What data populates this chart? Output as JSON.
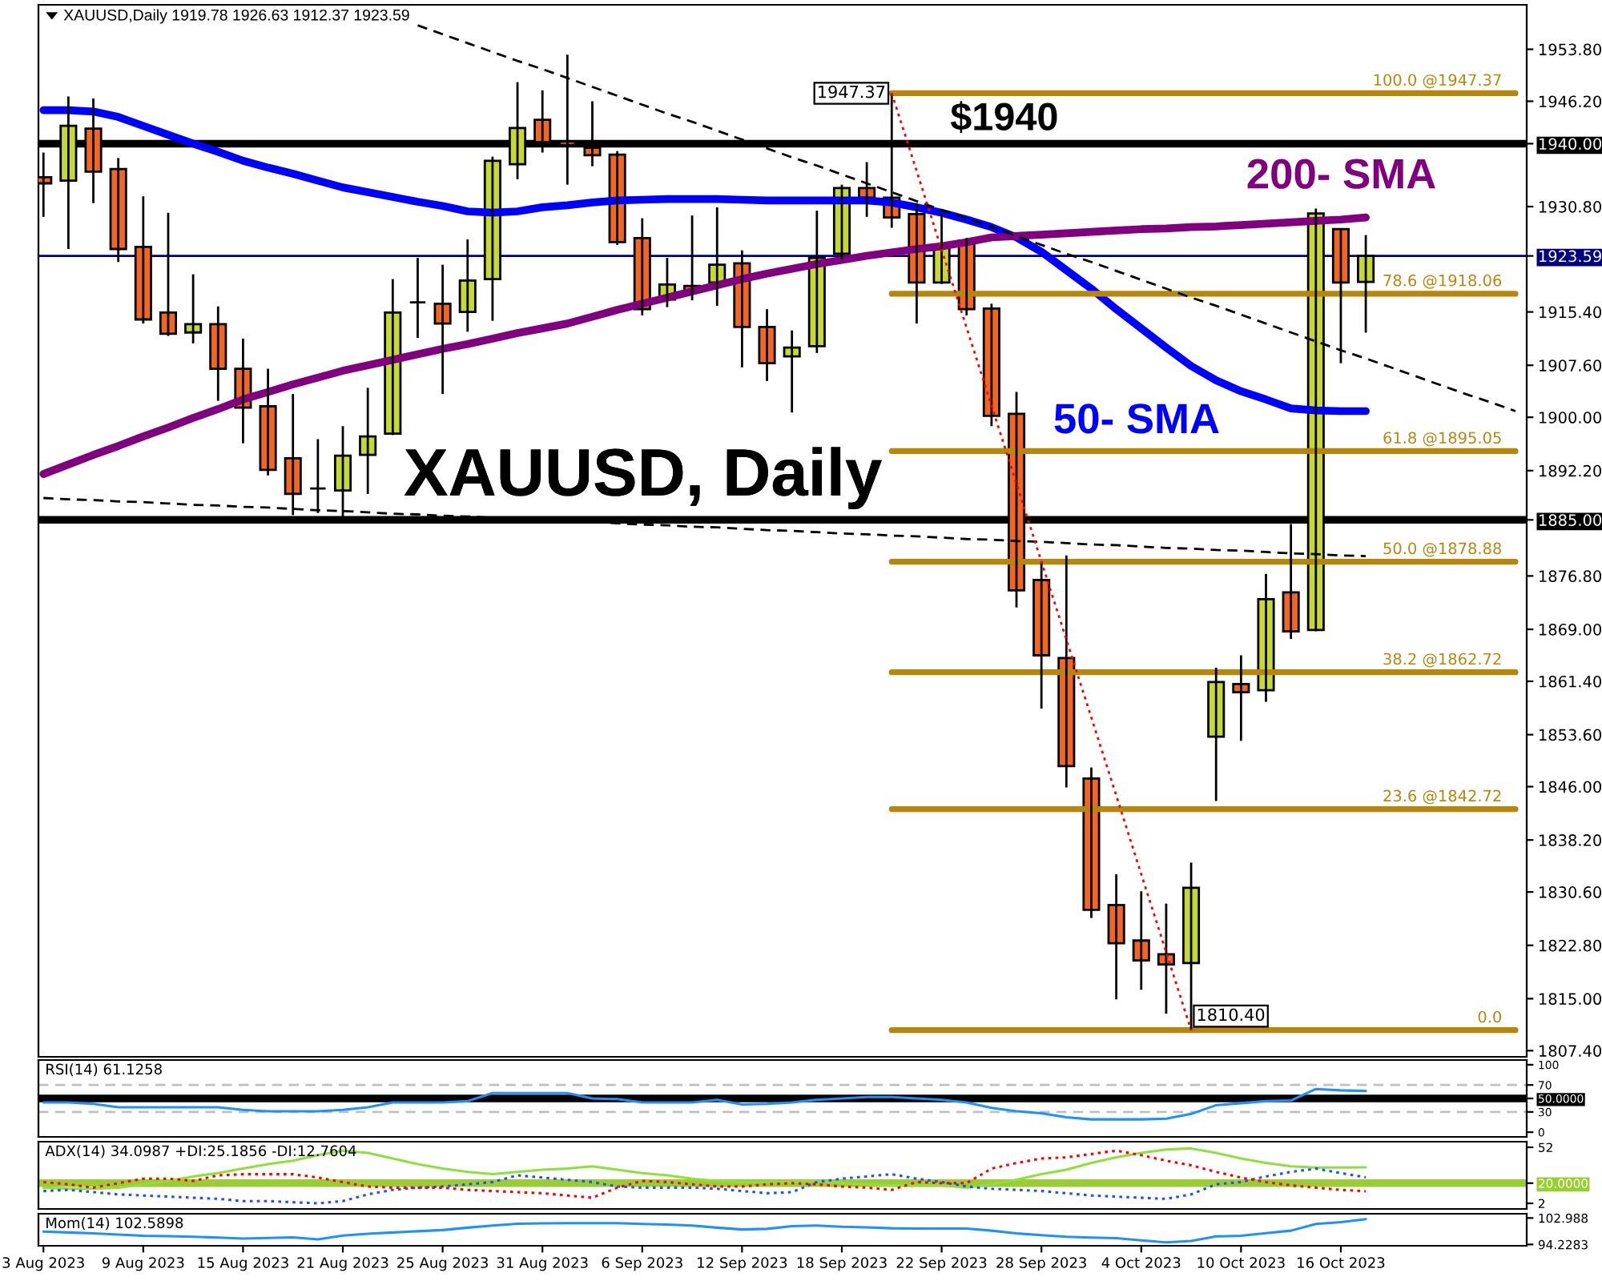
{
  "chart_data": [
    {
      "type": "candlestick",
      "title": "XAUUSD, Daily",
      "subtitle": "XAUUSD,Daily 1919.78 1926.63 1912.37 1923.59",
      "categories": [
        null,
        null,
        null,
        null,
        null,
        null,
        null,
        null,
        null,
        null,
        null,
        null,
        null,
        null,
        null,
        null,
        null,
        null,
        null,
        null,
        null,
        null,
        null,
        null,
        null,
        null,
        null,
        null,
        null,
        null,
        null,
        null,
        null,
        null,
        null,
        null,
        null,
        null,
        null,
        null,
        null,
        null,
        null,
        null,
        null,
        null,
        null,
        null,
        null,
        null,
        null,
        null,
        null,
        null,
        null,
        null,
        null,
        null,
        null,
        null
      ],
      "ohlc": [
        [
          1935.1,
          1938.7,
          1929.3,
          1934.2
        ],
        [
          1934.6,
          1946.9,
          1924.6,
          1942.6
        ],
        [
          1942.2,
          1946.6,
          1931.3,
          1935.9
        ],
        [
          1936.3,
          1937.9,
          1922.7,
          1924.6
        ],
        [
          1924.9,
          1932.3,
          1913.7,
          1914.3
        ],
        [
          1915.3,
          1929.9,
          1911.9,
          1912.2
        ],
        [
          1912.4,
          1920.9,
          1910.8,
          1913.6
        ],
        [
          1913.6,
          1916.2,
          1902.4,
          1907.1
        ],
        [
          1907.1,
          1911.5,
          1896.2,
          1901.4
        ],
        [
          1901.6,
          1907.1,
          1891.5,
          1892.3
        ],
        [
          1894.0,
          1903.4,
          1885.7,
          1888.8
        ],
        [
          1889.6,
          1896.8,
          1886.0,
          1889.6
        ],
        [
          1889.3,
          1898.7,
          1885.3,
          1894.4
        ],
        [
          1894.5,
          1904.3,
          1888.8,
          1897.2
        ],
        [
          1897.6,
          1920.2,
          1897.4,
          1915.3
        ],
        [
          1916.8,
          1923.3,
          1911.6,
          1916.8
        ],
        [
          1916.6,
          1922.3,
          1903.4,
          1913.7
        ],
        [
          1915.4,
          1926.0,
          1912.5,
          1920.0
        ],
        [
          1920.2,
          1938.1,
          1914.1,
          1937.5
        ],
        [
          1937.0,
          1949.0,
          1934.8,
          1942.3
        ],
        [
          1943.5,
          1947.8,
          1938.7,
          1940.2
        ],
        [
          1940.3,
          1953.0,
          1934.0,
          1939.8
        ],
        [
          1939.4,
          1946.2,
          1936.7,
          1938.3
        ],
        [
          1938.4,
          1938.9,
          1925.2,
          1925.6
        ],
        [
          1926.2,
          1929.1,
          1914.9,
          1915.8
        ],
        [
          1917.2,
          1923.3,
          1916.1,
          1919.4
        ],
        [
          1919.2,
          1929.5,
          1917.1,
          1918.6
        ],
        [
          1919.7,
          1930.7,
          1916.3,
          1922.3
        ],
        [
          1922.5,
          1924.4,
          1907.3,
          1913.2
        ],
        [
          1913.2,
          1915.8,
          1905.3,
          1907.9
        ],
        [
          1908.9,
          1912.7,
          1900.7,
          1910.2
        ],
        [
          1910.4,
          1930.2,
          1909.4,
          1923.3
        ],
        [
          1923.9,
          1934.0,
          1923.1,
          1933.5
        ],
        [
          1933.5,
          1937.3,
          1929.3,
          1932.1
        ],
        [
          1932.1,
          1947.37,
          1927.7,
          1929.2
        ],
        [
          1929.7,
          1931.3,
          1913.7,
          1919.7
        ],
        [
          1919.7,
          1929.8,
          1919.5,
          1925.2
        ],
        [
          1925.8,
          1926.2,
          1914.9,
          1915.8
        ],
        [
          1915.9,
          1916.6,
          1898.7,
          1900.2
        ],
        [
          1900.5,
          1903.7,
          1872.2,
          1874.7
        ],
        [
          1876.2,
          1878.9,
          1857.4,
          1865.2
        ],
        [
          1864.8,
          1879.8,
          1845.9,
          1849.0
        ],
        [
          1847.2,
          1848.8,
          1826.8,
          1828.0
        ],
        [
          1828.7,
          1833.2,
          1814.9,
          1823.1
        ],
        [
          1823.5,
          1830.7,
          1816.3,
          1820.6
        ],
        [
          1821.5,
          1828.9,
          1812.8,
          1820.0
        ],
        [
          1820.2,
          1834.9,
          1810.4,
          1831.2
        ],
        [
          1853.3,
          1863.4,
          1843.9,
          1861.3
        ],
        [
          1861.0,
          1865.2,
          1852.7,
          1859.8
        ],
        [
          1860.1,
          1877.1,
          1858.4,
          1873.4
        ],
        [
          1874.4,
          1884.4,
          1867.6,
          1868.7
        ],
        [
          1868.9,
          1930.5,
          1868.7,
          1929.8
        ],
        [
          1927.5,
          1927.5,
          1907.9,
          1919.7
        ],
        [
          1919.78,
          1926.63,
          1912.37,
          1923.59
        ],
        null,
        null,
        null,
        null,
        null,
        null
      ],
      "colors": [
        "#f26522",
        "#c5d833",
        "#f26522",
        "#f26522",
        "#f26522",
        "#f26522",
        "#c5d833",
        "#f26522",
        "#f26522",
        "#f26522",
        "#f26522",
        "#000000",
        "#c5d833",
        "#c5d833",
        "#c5d833",
        "#000000",
        "#f26522",
        "#c5d833",
        "#c5d833",
        "#c5d833",
        "#f26522",
        "#f26522",
        "#f26522",
        "#f26522",
        "#f26522",
        "#c5d833",
        "#f26522",
        "#c5d833",
        "#f26522",
        "#f26522",
        "#c5d833",
        "#c5d833",
        "#c5d833",
        "#f26522",
        "#f26522",
        "#f26522",
        "#c5d833",
        "#f26522",
        "#f26522",
        "#f26522",
        "#f26522",
        "#f26522",
        "#f26522",
        "#f26522",
        "#f26522",
        "#f26522",
        "#c5d833",
        "#c5d833",
        "#f26522",
        "#c5d833",
        "#f26522",
        "#c5d833",
        "#f26522",
        "#c5d833",
        null,
        null,
        null,
        null,
        null,
        null
      ],
      "series": [
        {
          "type": "line",
          "name": "50- SMA",
          "color": "#0000ff",
          "values": [
            1944.9,
            1944.9,
            1944.7,
            1943.9,
            1942.6,
            1941.3,
            1940.0,
            1938.8,
            1937.5,
            1936.5,
            1935.6,
            1934.6,
            1933.6,
            1932.9,
            1932.2,
            1931.5,
            1930.9,
            1930.1,
            1929.9,
            1930.1,
            1930.7,
            1931.0,
            1931.4,
            1931.7,
            1931.8,
            1931.9,
            1931.9,
            1931.9,
            1931.8,
            1931.7,
            1931.7,
            1931.7,
            1931.7,
            1931.7,
            1931.4,
            1930.7,
            1929.9,
            1928.9,
            1927.8,
            1926.3,
            1924.2,
            1921.5,
            1918.8,
            1915.8,
            1913.0,
            1910.2,
            1907.5,
            1905.4,
            1903.8,
            1902.6,
            1901.3,
            1901.0,
            1900.9,
            1900.9,
            null,
            null,
            null,
            null,
            null,
            null
          ]
        },
        {
          "type": "line",
          "name": "200- SMA",
          "color": "#800080",
          "values": [
            1891.7,
            1893.1,
            1894.5,
            1895.8,
            1897.2,
            1898.5,
            1899.9,
            1901.2,
            1902.6,
            1903.7,
            1904.8,
            1905.8,
            1906.8,
            1907.6,
            1908.4,
            1909.2,
            1910.0,
            1910.7,
            1911.5,
            1912.3,
            1913.0,
            1913.7,
            1914.7,
            1915.7,
            1916.6,
            1917.5,
            1918.4,
            1919.3,
            1920.2,
            1921.0,
            1921.7,
            1922.4,
            1923.0,
            1923.6,
            1924.1,
            1924.6,
            1925.0,
            1925.6,
            1926.3,
            1926.5,
            1926.7,
            1926.9,
            1927.1,
            1927.3,
            1927.5,
            1927.6,
            1927.8,
            1927.9,
            1928.1,
            1928.3,
            1928.5,
            1928.7,
            1928.9,
            1929.2,
            null,
            null,
            null,
            null,
            null,
            null
          ]
        },
        {
          "type": "line",
          "color": "#000000",
          "line_style": "dashed",
          "values": [
            null,
            null,
            null,
            null,
            null,
            null,
            null,
            null,
            null,
            null,
            null,
            null,
            null,
            null,
            null,
            1957.3,
            1956.0,
            1954.7,
            1953.4,
            1952.1,
            1950.9,
            1949.6,
            1948.3,
            1947.0,
            1945.7,
            1944.4,
            1943.2,
            1941.9,
            1940.6,
            1939.3,
            1938.0,
            1936.8,
            1935.5,
            1934.2,
            1932.9,
            1931.6,
            1930.3,
            1929.1,
            1927.8,
            1926.5,
            1925.2,
            1923.9,
            1922.7,
            1921.4,
            1920.1,
            1918.8,
            1917.5,
            1916.3,
            1915.0,
            1913.7,
            1912.4,
            1911.1,
            1909.8,
            1908.6,
            1907.3,
            1906.0,
            1904.7,
            1903.4,
            1902.2,
            1900.9
          ]
        },
        {
          "type": "line",
          "color": "#000000",
          "line_style": "dashed",
          "values": [
            1888.2,
            1888.0,
            1887.9,
            1887.7,
            1887.6,
            1887.4,
            1887.2,
            1887.1,
            1886.9,
            1886.8,
            1886.6,
            1886.4,
            1886.3,
            1886.1,
            1885.9,
            1885.8,
            1885.6,
            1885.5,
            1885.3,
            1885.1,
            1885.0,
            1884.8,
            1884.7,
            1884.5,
            1884.3,
            1884.2,
            1884.0,
            1883.9,
            1883.7,
            1883.5,
            1883.4,
            1883.2,
            1883.0,
            1882.9,
            1882.7,
            1882.6,
            1882.4,
            1882.2,
            1882.1,
            1881.9,
            1881.8,
            1881.6,
            1881.4,
            1881.3,
            1881.1,
            1880.9,
            1880.8,
            1880.6,
            1880.5,
            1880.3,
            1880.1,
            1880.0,
            1879.8,
            1879.7,
            null,
            null,
            null,
            null,
            null,
            null
          ]
        },
        {
          "type": "line",
          "color": "#ff0000",
          "line_style": "dotted",
          "values": [
            null,
            null,
            null,
            null,
            null,
            null,
            null,
            null,
            null,
            null,
            null,
            null,
            null,
            null,
            null,
            null,
            null,
            null,
            null,
            null,
            null,
            null,
            null,
            null,
            null,
            null,
            null,
            null,
            null,
            null,
            null,
            null,
            null,
            null,
            1947.37,
            1936.0,
            1924.5,
            1913.1,
            1901.7,
            1890.3,
            1878.9,
            1867.5,
            1856.1,
            1844.7,
            1833.2,
            1821.8,
            1810.4,
            null,
            null,
            null,
            null,
            null,
            null,
            null,
            null,
            null,
            null,
            null,
            null,
            null
          ]
        },
        {
          "type": "line",
          "name": "100.0 @1947.37",
          "color": "#b8860b",
          "values": [
            null,
            null,
            null,
            null,
            null,
            null,
            null,
            null,
            null,
            null,
            null,
            null,
            null,
            null,
            null,
            null,
            null,
            null,
            null,
            null,
            null,
            null,
            null,
            null,
            null,
            null,
            null,
            null,
            null,
            null,
            null,
            null,
            null,
            null,
            1947.37,
            1947.37,
            1947.37,
            1947.37,
            1947.37,
            1947.37,
            1947.37,
            1947.37,
            1947.37,
            1947.37,
            1947.37,
            1947.37,
            1947.37,
            1947.37,
            1947.37,
            1947.37,
            1947.37,
            1947.37,
            1947.37,
            1947.37,
            1947.37,
            1947.37,
            1947.37,
            1947.37,
            1947.37,
            1947.37
          ]
        },
        {
          "type": "line",
          "name": "78.6 @1918.06",
          "color": "#b8860b",
          "values": [
            null,
            null,
            null,
            null,
            null,
            null,
            null,
            null,
            null,
            null,
            null,
            null,
            null,
            null,
            null,
            null,
            null,
            null,
            null,
            null,
            null,
            null,
            null,
            null,
            null,
            null,
            null,
            null,
            null,
            null,
            null,
            null,
            null,
            null,
            1918.06,
            1918.06,
            1918.06,
            1918.06,
            1918.06,
            1918.06,
            1918.06,
            1918.06,
            1918.06,
            1918.06,
            1918.06,
            1918.06,
            1918.06,
            1918.06,
            1918.06,
            1918.06,
            1918.06,
            1918.06,
            1918.06,
            1918.06,
            1918.06,
            1918.06,
            1918.06,
            1918.06,
            1918.06,
            1918.06
          ]
        },
        {
          "type": "line",
          "name": "61.8 @1895.05",
          "color": "#b8860b",
          "values": [
            null,
            null,
            null,
            null,
            null,
            null,
            null,
            null,
            null,
            null,
            null,
            null,
            null,
            null,
            null,
            null,
            null,
            null,
            null,
            null,
            null,
            null,
            null,
            null,
            null,
            null,
            null,
            null,
            null,
            null,
            null,
            null,
            null,
            null,
            1895.05,
            1895.05,
            1895.05,
            1895.05,
            1895.05,
            1895.05,
            1895.05,
            1895.05,
            1895.05,
            1895.05,
            1895.05,
            1895.05,
            1895.05,
            1895.05,
            1895.05,
            1895.05,
            1895.05,
            1895.05,
            1895.05,
            1895.05,
            1895.05,
            1895.05,
            1895.05,
            1895.05,
            1895.05,
            1895.05
          ]
        },
        {
          "type": "line",
          "name": "50.0 @1878.88",
          "color": "#b8860b",
          "values": [
            null,
            null,
            null,
            null,
            null,
            null,
            null,
            null,
            null,
            null,
            null,
            null,
            null,
            null,
            null,
            null,
            null,
            null,
            null,
            null,
            null,
            null,
            null,
            null,
            null,
            null,
            null,
            null,
            null,
            null,
            null,
            null,
            null,
            null,
            1878.88,
            1878.88,
            1878.88,
            1878.88,
            1878.88,
            1878.88,
            1878.88,
            1878.88,
            1878.88,
            1878.88,
            1878.88,
            1878.88,
            1878.88,
            1878.88,
            1878.88,
            1878.88,
            1878.88,
            1878.88,
            1878.88,
            1878.88,
            1878.88,
            1878.88,
            1878.88,
            1878.88,
            1878.88,
            1878.88
          ]
        },
        {
          "type": "line",
          "name": "38.2 @1862.72",
          "color": "#b8860b",
          "values": [
            null,
            null,
            null,
            null,
            null,
            null,
            null,
            null,
            null,
            null,
            null,
            null,
            null,
            null,
            null,
            null,
            null,
            null,
            null,
            null,
            null,
            null,
            null,
            null,
            null,
            null,
            null,
            null,
            null,
            null,
            null,
            null,
            null,
            null,
            1862.72,
            1862.72,
            1862.72,
            1862.72,
            1862.72,
            1862.72,
            1862.72,
            1862.72,
            1862.72,
            1862.72,
            1862.72,
            1862.72,
            1862.72,
            1862.72,
            1862.72,
            1862.72,
            1862.72,
            1862.72,
            1862.72,
            1862.72,
            1862.72,
            1862.72,
            1862.72,
            1862.72,
            1862.72,
            1862.72
          ]
        },
        {
          "type": "line",
          "name": "23.6 @1842.72",
          "color": "#b8860b",
          "values": [
            null,
            null,
            null,
            null,
            null,
            null,
            null,
            null,
            null,
            null,
            null,
            null,
            null,
            null,
            null,
            null,
            null,
            null,
            null,
            null,
            null,
            null,
            null,
            null,
            null,
            null,
            null,
            null,
            null,
            null,
            null,
            null,
            null,
            null,
            1842.72,
            1842.72,
            1842.72,
            1842.72,
            1842.72,
            1842.72,
            1842.72,
            1842.72,
            1842.72,
            1842.72,
            1842.72,
            1842.72,
            1842.72,
            1842.72,
            1842.72,
            1842.72,
            1842.72,
            1842.72,
            1842.72,
            1842.72,
            1842.72,
            1842.72,
            1842.72,
            1842.72,
            1842.72,
            1842.72
          ]
        },
        {
          "type": "line",
          "name": "0.0",
          "color": "#b8860b",
          "values": [
            null,
            null,
            null,
            null,
            null,
            null,
            null,
            null,
            null,
            null,
            null,
            null,
            null,
            null,
            null,
            null,
            null,
            null,
            null,
            null,
            null,
            null,
            null,
            null,
            null,
            null,
            null,
            null,
            null,
            null,
            null,
            null,
            null,
            null,
            1810.4,
            1810.4,
            1810.4,
            1810.4,
            1810.4,
            1810.4,
            1810.4,
            1810.4,
            1810.4,
            1810.4,
            1810.4,
            1810.4,
            1810.4,
            1810.4,
            1810.4,
            1810.4,
            1810.4,
            1810.4,
            1810.4,
            1810.4,
            1810.4,
            1810.4,
            1810.4,
            1810.4,
            1810.4,
            1810.4
          ]
        }
      ],
      "ylim": [
        1806.5,
        1960.3
      ],
      "yticks": [
        {
          "value": 1953.8,
          "label": "1953.80"
        },
        {
          "value": 1946.2,
          "label": "1946.20"
        },
        {
          "value": 1940,
          "label": "1940.00"
        },
        {
          "value": 1930.8,
          "label": "1930.80"
        },
        {
          "value": 1923.59,
          "label": "1923.59"
        },
        {
          "value": 1915.4,
          "label": "1915.40"
        },
        {
          "value": 1907.6,
          "label": "1907.60"
        },
        {
          "value": 1900,
          "label": "1900.00"
        },
        {
          "value": 1892.2,
          "label": "1892.20"
        },
        {
          "value": 1885,
          "label": "1885.00"
        },
        {
          "value": 1876.8,
          "label": "1876.80"
        },
        {
          "value": 1869,
          "label": "1869.00"
        },
        {
          "value": 1861.4,
          "label": "1861.40"
        },
        {
          "value": 1853.6,
          "label": "1853.60"
        },
        {
          "value": 1846,
          "label": "1846.00"
        },
        {
          "value": 1838.2,
          "label": "1838.20"
        },
        {
          "value": 1830.6,
          "label": "1830.60"
        },
        {
          "value": 1822.8,
          "label": "1822.80"
        },
        {
          "value": 1815,
          "label": "1815.00"
        },
        {
          "value": 1807.4,
          "label": "1807.40"
        }
      ],
      "ref_lines": [
        {
          "axis": "y",
          "value": 1940,
          "label": "$1940",
          "color": "#000000"
        },
        {
          "axis": "y",
          "value": 1885,
          "color": "#000000"
        },
        {
          "axis": "y",
          "value": 1923.59,
          "color": "#000080",
          "line_style": "solid"
        }
      ],
      "annotations": [
        "1947.37",
        "1810.40"
      ],
      "tick_labels": "y"
    },
    {
      "type": "line",
      "title": "RSI(14) 61.1258",
      "categories": [
        null,
        null,
        null,
        null,
        null,
        null,
        null,
        null,
        null,
        null,
        null,
        null,
        null,
        null,
        null,
        null,
        null,
        null,
        null,
        null,
        null,
        null,
        null,
        null,
        null,
        null,
        null,
        null,
        null,
        null,
        null,
        null,
        null,
        null,
        null,
        null,
        null,
        null,
        null,
        null,
        null,
        null,
        null,
        null,
        null,
        null,
        null,
        null,
        null,
        null,
        null,
        null,
        null,
        null,
        null,
        null,
        null,
        null,
        null,
        null
      ],
      "series": [
        {
          "color": "#1e90ff",
          "values": [
            44,
            44,
            42,
            37,
            37,
            37,
            37,
            37,
            33,
            31,
            31,
            31,
            33,
            37,
            44,
            44,
            44,
            46,
            58,
            58,
            58,
            58,
            50,
            49,
            44,
            44,
            44,
            48,
            41,
            42,
            44,
            48,
            50,
            52,
            52,
            50,
            48,
            44,
            36,
            31,
            28,
            22,
            19,
            19,
            19,
            20,
            27,
            40,
            43,
            46,
            47,
            64,
            62,
            61.1258,
            null,
            null,
            null,
            null,
            null,
            null
          ]
        }
      ],
      "ylim": [
        -7,
        107
      ],
      "yticks": [
        100,
        70,
        {
          "value": 50,
          "label": "50.0000"
        },
        30,
        0
      ],
      "ref_lines": [
        {
          "axis": "y",
          "value": 70,
          "color": "#c0c0c0",
          "line_style": "dashed"
        },
        {
          "axis": "y",
          "value": 30,
          "color": "#c0c0c0",
          "line_style": "dashed"
        },
        {
          "axis": "y",
          "value": 50,
          "color": "#000000"
        }
      ],
      "tick_labels": "y"
    },
    {
      "type": "line",
      "title": "ADX(14) 34.0987 +DI:25.1856 -DI:12.7604",
      "categories": [
        null,
        null,
        null,
        null,
        null,
        null,
        null,
        null,
        null,
        null,
        null,
        null,
        null,
        null,
        null,
        null,
        null,
        null,
        null,
        null,
        null,
        null,
        null,
        null,
        null,
        null,
        null,
        null,
        null,
        null,
        null,
        null,
        null,
        null,
        null,
        null,
        null,
        null,
        null,
        null,
        null,
        null,
        null,
        null,
        null,
        null,
        null,
        null,
        null,
        null,
        null,
        null,
        null,
        null,
        null,
        null,
        null,
        null,
        null,
        null
      ],
      "series": [
        {
          "color": "#8fe03c",
          "values": [
            16,
            15,
            15,
            16,
            19,
            22,
            26,
            29,
            33,
            37,
            40,
            45,
            49,
            47,
            42,
            37,
            33,
            30,
            28,
            30,
            32,
            33,
            35,
            32,
            29,
            27,
            24,
            22,
            21,
            21,
            21,
            22,
            20,
            19,
            18,
            18,
            18,
            16,
            19,
            23,
            28,
            32,
            38,
            43,
            47,
            50,
            51,
            47,
            42,
            38,
            35,
            34,
            34,
            34.0987,
            null,
            null,
            null,
            null,
            null,
            null
          ]
        },
        {
          "color": "#1e50ff",
          "line_style": "dotted",
          "values": [
            13,
            14,
            12,
            10,
            9,
            8,
            7,
            6,
            4,
            4,
            3,
            2,
            4,
            10,
            14,
            16,
            17,
            19,
            21,
            27,
            25,
            23,
            21,
            17,
            16,
            16,
            16,
            15,
            13,
            11,
            12,
            21,
            24,
            26,
            28,
            24,
            21,
            17,
            15,
            14,
            13,
            11,
            9,
            8,
            7,
            6,
            10,
            19,
            21,
            26,
            30,
            33,
            29,
            25.1856,
            null,
            null,
            null,
            null,
            null,
            null
          ]
        },
        {
          "color": "#ff0000",
          "line_style": "dotted",
          "values": [
            21,
            19,
            16,
            20,
            24,
            24,
            22,
            27,
            28,
            28,
            28,
            25,
            21,
            17,
            16,
            16,
            16,
            14,
            13,
            12,
            11,
            9,
            7,
            16,
            22,
            21,
            19,
            17,
            17,
            19,
            20,
            19,
            17,
            16,
            14,
            21,
            20,
            20,
            33,
            38,
            42,
            43,
            46,
            49,
            45,
            40,
            36,
            30,
            25,
            21,
            18,
            16,
            14,
            12.7604,
            null,
            null,
            null,
            null,
            null,
            null
          ]
        }
      ],
      "ylim": [
        -3,
        57
      ],
      "yticks": [
        52,
        {
          "value": 20,
          "label": "20.0000"
        },
        2
      ],
      "ref_lines": [
        {
          "axis": "y",
          "value": 20,
          "color": "#9acd32"
        }
      ],
      "tick_labels": "y"
    },
    {
      "type": "line",
      "title": "Mom(14) 102.5898",
      "categories": [
        "3 Aug 2023",
        null,
        null,
        null,
        "9 Aug 2023",
        null,
        null,
        null,
        "15 Aug 2023",
        null,
        null,
        null,
        "21 Aug 2023",
        null,
        null,
        null,
        "25 Aug 2023",
        null,
        null,
        null,
        "31 Aug 2023",
        null,
        null,
        null,
        "6 Sep 2023",
        null,
        null,
        null,
        "12 Sep 2023",
        null,
        null,
        null,
        "18 Sep 2023",
        null,
        null,
        null,
        "22 Sep 2023",
        null,
        null,
        null,
        "28 Sep 2023",
        null,
        null,
        null,
        "4 Oct 2023",
        null,
        null,
        null,
        "10 Oct 2023",
        null,
        null,
        null,
        "16 Oct 2023",
        null,
        null,
        null,
        null,
        null,
        null,
        null
      ],
      "series": [
        {
          "color": "#1e90ff",
          "values": [
            98.5,
            98.2,
            97.9,
            97.5,
            97.1,
            97.0,
            96.8,
            96.5,
            96.2,
            96.4,
            96.6,
            95.9,
            97.2,
            97.8,
            98.2,
            98.6,
            99.0,
            99.8,
            100.5,
            101.1,
            101.2,
            101.3,
            101.3,
            101.3,
            101.0,
            100.8,
            100.5,
            99.8,
            99.2,
            99.4,
            100.3,
            100.5,
            100.1,
            99.9,
            99.6,
            99.5,
            99.5,
            99.5,
            98.8,
            97.9,
            97.3,
            96.8,
            96.5,
            96.3,
            95.6,
            94.9,
            95.4,
            96.9,
            97.1,
            98.0,
            98.8,
            101.0,
            101.6,
            102.5898,
            null,
            null,
            null,
            null,
            null,
            null
          ]
        }
      ],
      "ylim": [
        93.8,
        104.4
      ],
      "yticks": [
        102.988,
        94.2283
      ]
    }
  ]
}
